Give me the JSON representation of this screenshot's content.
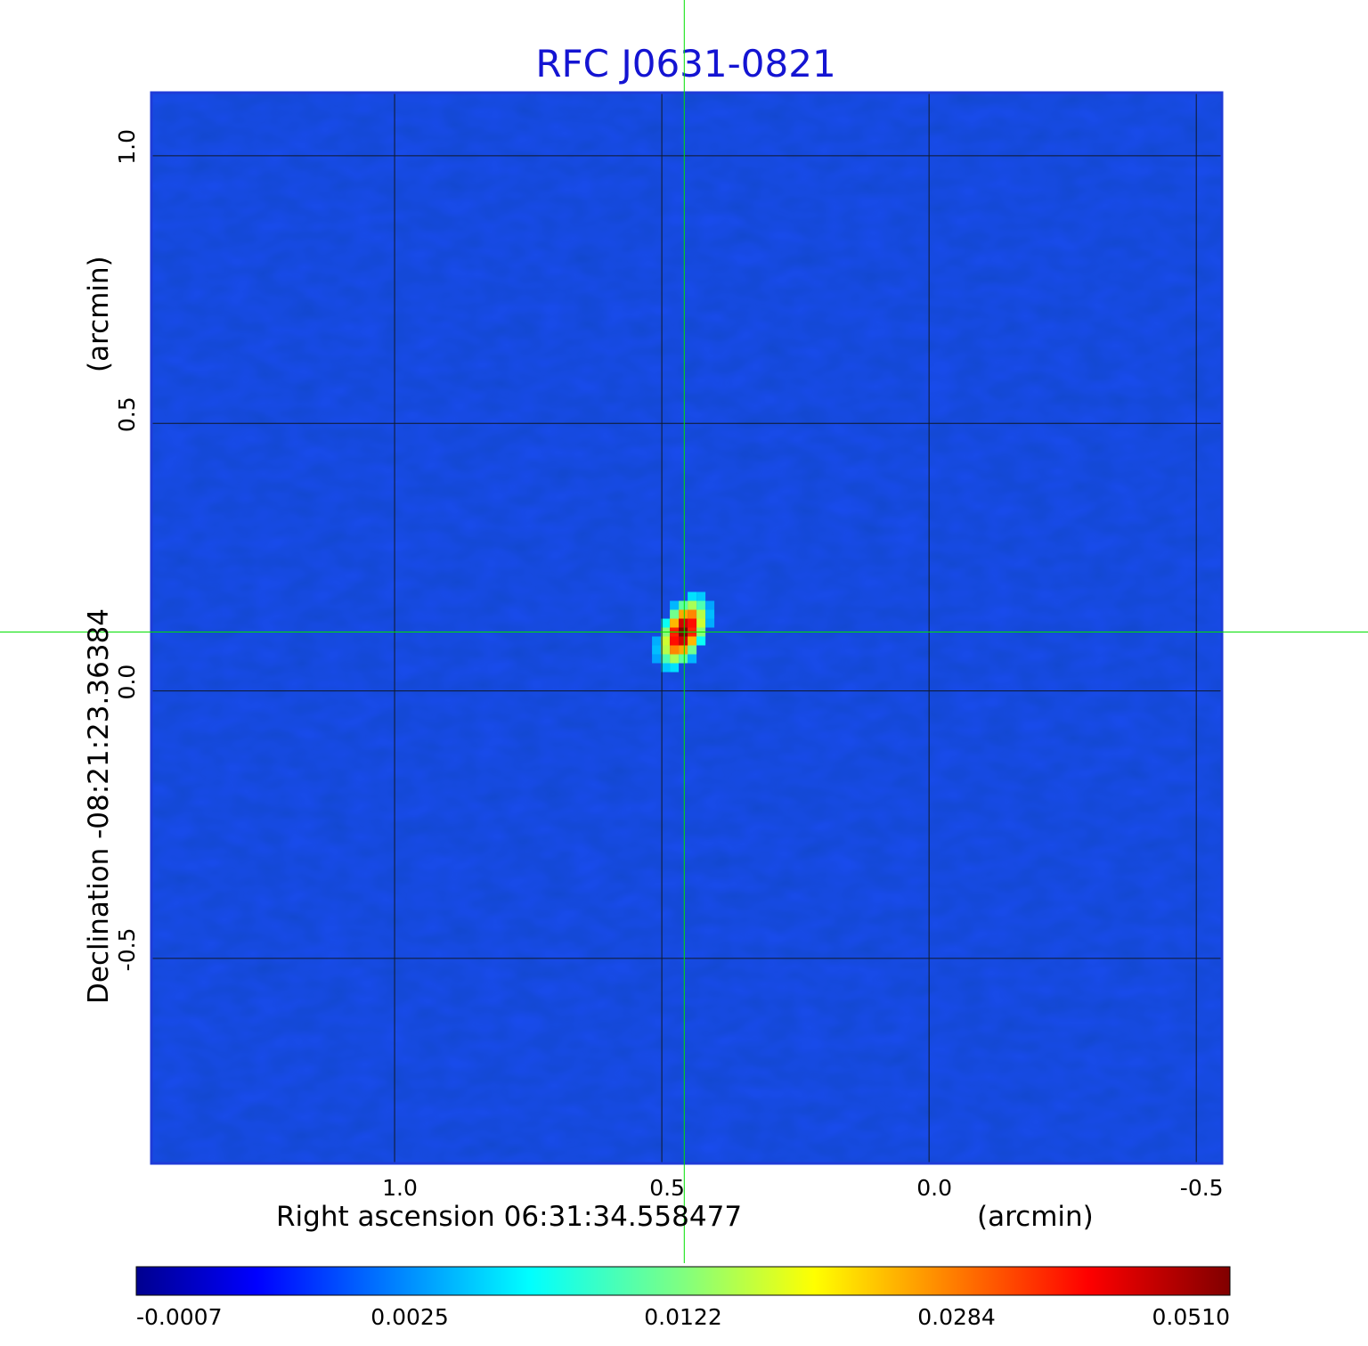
{
  "chart_data": {
    "type": "heatmap",
    "title": "RFC J0631-0821",
    "xlabel": "Right ascension  06:31:34.558477",
    "xunit": "(arcmin)",
    "ylabel": "Declination  -08:21:23.36384",
    "yunit": "(arcmin)",
    "x_ticks": [
      {
        "value": 1.0,
        "label": "1.0"
      },
      {
        "value": 0.5,
        "label": "0.5"
      },
      {
        "value": 0.0,
        "label": "0.0"
      },
      {
        "value": -0.5,
        "label": "-0.5"
      }
    ],
    "y_ticks": [
      {
        "value": 1.0,
        "label": "1.0"
      },
      {
        "value": 0.5,
        "label": "0.5"
      },
      {
        "value": 0.0,
        "label": "0.0"
      },
      {
        "value": -0.5,
        "label": "-0.5"
      }
    ],
    "xlim": [
      1.455,
      -0.548
    ],
    "ylim": [
      -0.883,
      1.118
    ],
    "x_direction": "decreasing",
    "grid": true,
    "crosshair": {
      "x": 0.458,
      "y": 0.11,
      "color": "#00e000"
    },
    "source_peak": {
      "x": 0.46,
      "y": 0.11,
      "value": 0.051
    },
    "colormap": "jet",
    "colorbar": {
      "position": "bottom",
      "tick_labels": [
        "-0.0007",
        "0.0025",
        "0.0122",
        "0.0284",
        "0.0510"
      ],
      "min": -0.0007,
      "max": 0.051
    },
    "background_level": 0.0005
  }
}
